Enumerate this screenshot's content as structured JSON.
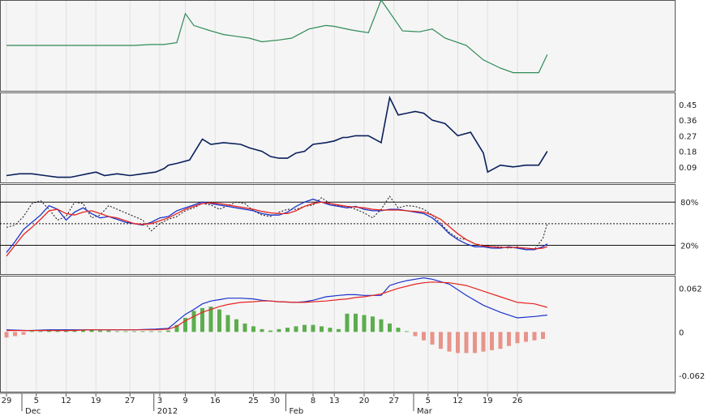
{
  "chart_data": [
    {
      "panel": "top-line",
      "type": "line",
      "color": "#2e8b57",
      "x_days": [
        0,
        30,
        34,
        37,
        40,
        42,
        44,
        48,
        51,
        54,
        57,
        60,
        64,
        67,
        71,
        75,
        77,
        81,
        85,
        88,
        93,
        97,
        100,
        103,
        108,
        112,
        116,
        119,
        122,
        125,
        127
      ],
      "values": [
        0.5,
        0.5,
        0.51,
        0.51,
        0.53,
        0.85,
        0.72,
        0.66,
        0.62,
        0.6,
        0.58,
        0.54,
        0.56,
        0.58,
        0.68,
        0.72,
        0.71,
        0.67,
        0.64,
        1.0,
        0.66,
        0.65,
        0.68,
        0.58,
        0.5,
        0.34,
        0.25,
        0.2,
        0.2,
        0.2,
        0.4
      ]
    },
    {
      "panel": "middle-line",
      "type": "line",
      "color": "#0a1f5c",
      "y_ticks": [
        "0.45",
        "0.36",
        "0.27",
        "0.18",
        "0.09"
      ],
      "y_tick_values": [
        0.45,
        0.36,
        0.27,
        0.18,
        0.09
      ],
      "ylim": [
        0.0,
        0.52
      ],
      "x_days": [
        0,
        3,
        6,
        9,
        12,
        15,
        17,
        19,
        21,
        23,
        26,
        29,
        32,
        35,
        37,
        38,
        40,
        43,
        46,
        48,
        51,
        55,
        57,
        60,
        62,
        64,
        66,
        68,
        70,
        72,
        75,
        77,
        79,
        80,
        82,
        85,
        88,
        90,
        92,
        94,
        96,
        98,
        100,
        103,
        106,
        109,
        112,
        113,
        116,
        119,
        122,
        125,
        127
      ],
      "values": [
        0.04,
        0.05,
        0.05,
        0.04,
        0.03,
        0.03,
        0.04,
        0.05,
        0.06,
        0.04,
        0.05,
        0.04,
        0.05,
        0.06,
        0.08,
        0.1,
        0.11,
        0.13,
        0.25,
        0.22,
        0.23,
        0.22,
        0.2,
        0.18,
        0.15,
        0.14,
        0.14,
        0.17,
        0.18,
        0.22,
        0.23,
        0.24,
        0.26,
        0.26,
        0.27,
        0.27,
        0.23,
        0.49,
        0.39,
        0.4,
        0.41,
        0.4,
        0.36,
        0.34,
        0.27,
        0.29,
        0.17,
        0.06,
        0.1,
        0.09,
        0.1,
        0.1,
        0.18
      ]
    },
    {
      "panel": "stochastic",
      "type": "line",
      "y_ticks": [
        "80%",
        "20%"
      ],
      "y_tick_values": [
        80,
        20
      ],
      "series": [
        {
          "style": "dotted",
          "color": "#111111",
          "x_days": [
            0,
            2,
            4,
            6,
            8,
            10,
            12,
            14,
            16,
            18,
            20,
            22,
            24,
            26,
            28,
            30,
            32,
            34,
            36,
            38,
            40,
            42,
            44,
            46,
            48,
            50,
            52,
            54,
            56,
            58,
            60,
            62,
            64,
            66,
            68,
            70,
            72,
            74,
            76,
            78,
            80,
            82,
            84,
            86,
            88,
            90,
            92,
            94,
            96,
            98,
            100,
            102,
            104,
            106,
            108,
            110,
            112,
            114,
            116,
            118,
            120,
            122,
            124,
            126,
            127
          ],
          "values": [
            45,
            48,
            60,
            78,
            82,
            70,
            55,
            60,
            80,
            78,
            58,
            62,
            75,
            70,
            65,
            60,
            55,
            40,
            50,
            56,
            60,
            68,
            72,
            78,
            76,
            70,
            75,
            80,
            78,
            68,
            62,
            60,
            66,
            70,
            70,
            74,
            76,
            86,
            78,
            75,
            74,
            70,
            65,
            58,
            70,
            88,
            72,
            75,
            74,
            70,
            62,
            50,
            38,
            30,
            28,
            22,
            20,
            18,
            18,
            16,
            18,
            14,
            14,
            30,
            50
          ]
        },
        {
          "style": "solid",
          "color": "#1a33cc",
          "x_days": [
            0,
            2,
            4,
            6,
            8,
            10,
            12,
            14,
            16,
            18,
            20,
            22,
            24,
            26,
            28,
            30,
            32,
            34,
            36,
            38,
            40,
            42,
            44,
            46,
            48,
            50,
            52,
            54,
            56,
            58,
            60,
            62,
            64,
            66,
            68,
            70,
            72,
            74,
            76,
            78,
            80,
            82,
            84,
            86,
            88,
            90,
            92,
            94,
            96,
            98,
            100,
            102,
            104,
            106,
            108,
            110,
            112,
            114,
            116,
            118,
            120,
            122,
            124,
            126,
            127
          ],
          "values": [
            10,
            25,
            42,
            52,
            62,
            75,
            70,
            55,
            66,
            72,
            64,
            58,
            60,
            56,
            52,
            50,
            48,
            52,
            58,
            60,
            68,
            72,
            76,
            80,
            78,
            76,
            74,
            72,
            70,
            68,
            64,
            62,
            62,
            66,
            74,
            80,
            84,
            80,
            76,
            74,
            72,
            74,
            70,
            68,
            68,
            70,
            70,
            68,
            66,
            64,
            58,
            48,
            36,
            28,
            22,
            18,
            18,
            16,
            16,
            18,
            16,
            14,
            14,
            18,
            22
          ]
        },
        {
          "style": "solid",
          "color": "#e52420",
          "x_days": [
            0,
            2,
            4,
            6,
            8,
            10,
            12,
            14,
            16,
            18,
            20,
            22,
            24,
            26,
            28,
            30,
            32,
            34,
            36,
            38,
            40,
            42,
            44,
            46,
            48,
            50,
            52,
            54,
            56,
            58,
            60,
            62,
            64,
            66,
            68,
            70,
            72,
            74,
            76,
            78,
            80,
            82,
            84,
            86,
            88,
            90,
            92,
            94,
            96,
            98,
            100,
            102,
            104,
            106,
            108,
            110,
            112,
            114,
            116,
            118,
            120,
            122,
            124,
            126,
            127
          ],
          "values": [
            5,
            20,
            35,
            45,
            56,
            68,
            70,
            64,
            62,
            66,
            68,
            64,
            60,
            58,
            54,
            50,
            49,
            50,
            54,
            58,
            64,
            70,
            74,
            78,
            79,
            78,
            76,
            74,
            72,
            70,
            67,
            65,
            64,
            64,
            68,
            74,
            78,
            80,
            78,
            76,
            74,
            73,
            72,
            70,
            69,
            69,
            69,
            68,
            67,
            66,
            62,
            56,
            46,
            36,
            28,
            22,
            19,
            18,
            17,
            17,
            17,
            16,
            15,
            16,
            18
          ]
        }
      ]
    },
    {
      "panel": "macd",
      "type": "bar+line",
      "y_ticks": [
        "0.062",
        "0",
        "-0.062"
      ],
      "y_tick_values": [
        0.062,
        0.0,
        -0.062
      ],
      "ylim": [
        -0.085,
        0.08
      ],
      "series": [
        {
          "name": "",
          "color": "#1a33cc",
          "x_days": [
            0,
            5,
            10,
            15,
            20,
            25,
            30,
            35,
            38,
            40,
            42,
            44,
            46,
            48,
            50,
            52,
            55,
            58,
            60,
            62,
            64,
            68,
            70,
            72,
            75,
            78,
            80,
            82,
            84,
            86,
            88,
            90,
            92,
            94,
            96,
            98,
            100,
            104,
            108,
            112,
            116,
            120,
            124,
            127
          ],
          "values": [
            0.003,
            0.002,
            0.003,
            0.003,
            0.003,
            0.003,
            0.003,
            0.004,
            0.005,
            0.015,
            0.025,
            0.032,
            0.04,
            0.044,
            0.046,
            0.048,
            0.048,
            0.047,
            0.045,
            0.044,
            0.043,
            0.042,
            0.043,
            0.045,
            0.05,
            0.052,
            0.053,
            0.053,
            0.052,
            0.052,
            0.052,
            0.066,
            0.07,
            0.073,
            0.075,
            0.077,
            0.075,
            0.068,
            0.052,
            0.038,
            0.028,
            0.02,
            0.022,
            0.024
          ]
        },
        {
          "name": "",
          "color": "#e52420",
          "x_days": [
            0,
            5,
            10,
            15,
            20,
            25,
            30,
            35,
            38,
            40,
            42,
            44,
            46,
            48,
            50,
            52,
            55,
            58,
            60,
            62,
            64,
            68,
            70,
            72,
            75,
            78,
            80,
            82,
            84,
            86,
            88,
            90,
            92,
            94,
            96,
            98,
            100,
            104,
            108,
            112,
            116,
            120,
            124,
            127
          ],
          "values": [
            0.002,
            0.002,
            0.002,
            0.002,
            0.003,
            0.003,
            0.003,
            0.003,
            0.004,
            0.008,
            0.016,
            0.022,
            0.028,
            0.032,
            0.036,
            0.039,
            0.042,
            0.043,
            0.044,
            0.044,
            0.043,
            0.042,
            0.042,
            0.043,
            0.044,
            0.046,
            0.047,
            0.049,
            0.05,
            0.052,
            0.054,
            0.058,
            0.062,
            0.065,
            0.068,
            0.07,
            0.071,
            0.07,
            0.066,
            0.058,
            0.05,
            0.042,
            0.04,
            0.035
          ]
        }
      ],
      "histogram_pos_color": "#5cad4e",
      "histogram_neg_color": "#e8948a",
      "histogram_x_days": [
        0,
        2,
        4,
        6,
        8,
        10,
        12,
        14,
        16,
        18,
        20,
        22,
        24,
        26,
        28,
        30,
        32,
        34,
        36,
        38,
        40,
        42,
        44,
        46,
        48,
        50,
        52,
        54,
        56,
        58,
        60,
        62,
        64,
        66,
        68,
        70,
        72,
        74,
        76,
        78,
        80,
        82,
        84,
        86,
        88,
        90,
        92,
        94,
        96,
        98,
        100,
        102,
        104,
        106,
        108,
        110,
        112,
        114,
        116,
        118,
        120,
        122,
        124,
        126
      ],
      "histogram": [
        -0.008,
        -0.006,
        -0.004,
        0.001,
        0.001,
        0.002,
        0.002,
        0.002,
        0.002,
        0.003,
        0.003,
        0.002,
        0.002,
        0.001,
        0.001,
        0.001,
        0.001,
        0.001,
        0.001,
        0.002,
        0.01,
        0.02,
        0.03,
        0.034,
        0.036,
        0.032,
        0.024,
        0.018,
        0.012,
        0.008,
        0.004,
        0.002,
        0.004,
        0.006,
        0.008,
        0.01,
        0.01,
        0.008,
        0.006,
        0.004,
        0.026,
        0.026,
        0.024,
        0.022,
        0.018,
        0.012,
        0.006,
        0.001,
        -0.006,
        -0.012,
        -0.018,
        -0.024,
        -0.028,
        -0.03,
        -0.03,
        -0.03,
        -0.028,
        -0.026,
        -0.024,
        -0.02,
        -0.016,
        -0.014,
        -0.012,
        -0.01
      ]
    },
    {
      "panel": "x-axis",
      "type": "axis",
      "tick_labels": [
        "29",
        "5",
        "12",
        "19",
        "27",
        "3",
        "9",
        "16",
        "25",
        "30",
        "8",
        "13",
        "20",
        "27",
        "5",
        "12",
        "19",
        "26"
      ],
      "tick_days": [
        0,
        7,
        14,
        21,
        29,
        36,
        42,
        49,
        58,
        63,
        72,
        77,
        84,
        91,
        99,
        106,
        113,
        120
      ],
      "month_labels": [
        "Dec",
        "2012",
        "Feb",
        "Mar"
      ],
      "month_days": [
        4,
        35,
        66,
        96
      ]
    }
  ]
}
